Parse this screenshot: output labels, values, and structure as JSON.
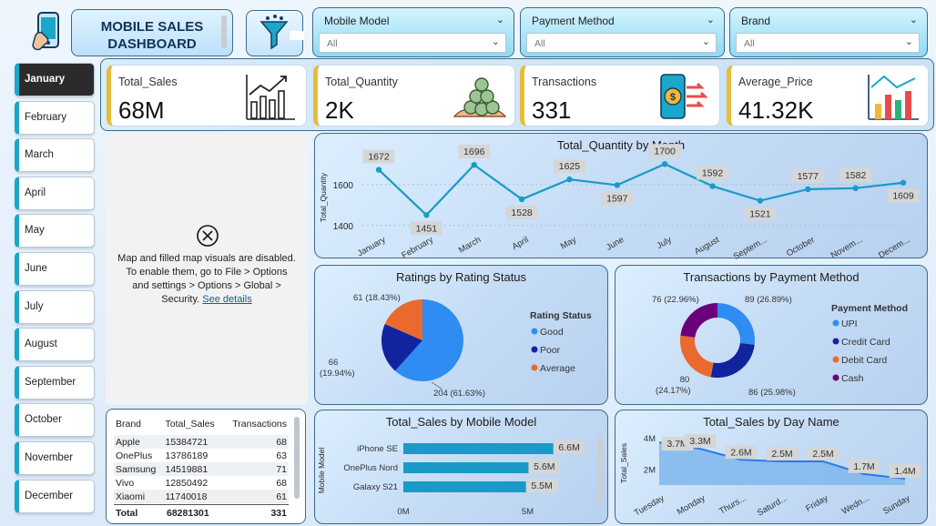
{
  "header": {
    "title_line1": "MOBILE SALES",
    "title_line2": "DASHBOARD",
    "colors": {
      "panel_border": "#3f6a8a",
      "accent": "#1aa7c9",
      "kpi_border": "#e6bd3a"
    }
  },
  "slicers": [
    {
      "label": "Mobile Model",
      "value": "All"
    },
    {
      "label": "Payment Method",
      "value": "All"
    },
    {
      "label": "Brand",
      "value": "All"
    }
  ],
  "months": [
    "January",
    "February",
    "March",
    "April",
    "May",
    "June",
    "July",
    "August",
    "September",
    "October",
    "November",
    "December"
  ],
  "active_month": "January",
  "kpis": [
    {
      "title": "Total_Sales",
      "value": "68M",
      "icon": "bar-chart-growth-icon"
    },
    {
      "title": "Total_Quantity",
      "value": "2K",
      "icon": "coin-stack-icon"
    },
    {
      "title": "Transactions",
      "value": "331",
      "icon": "mobile-payment-icon"
    },
    {
      "title": "Average_Price",
      "value": "41.32K",
      "icon": "price-chart-icon"
    }
  ],
  "map": {
    "message": "Map and filled map visuals are disabled. To enable them, go to File > Options and settings > Options > Global > Security.",
    "link": "See details"
  },
  "table": {
    "headers": [
      "Brand",
      "Total_Sales",
      "Transactions"
    ],
    "rows": [
      [
        "Apple",
        "15384721",
        "68"
      ],
      [
        "OnePlus",
        "13786189",
        "63"
      ],
      [
        "Samsung",
        "14519881",
        "71"
      ],
      [
        "Vivo",
        "12850492",
        "68"
      ],
      [
        "Xiaomi",
        "11740018",
        "61"
      ]
    ],
    "total": [
      "Total",
      "68281301",
      "331"
    ]
  },
  "chart_data": [
    {
      "type": "line",
      "title": "Total_Quantity by Month",
      "xlabel": "",
      "ylabel": "Total_Quantity",
      "categories": [
        "January",
        "February",
        "March",
        "April",
        "May",
        "June",
        "July",
        "August",
        "Septem...",
        "October",
        "Novem...",
        "Decem..."
      ],
      "values": [
        1672,
        1451,
        1696,
        1528,
        1625,
        1597,
        1700,
        1592,
        1521,
        1577,
        1582,
        1609
      ],
      "yticks": [
        "1600",
        "1400"
      ],
      "ylim": [
        1350,
        1750
      ]
    },
    {
      "type": "pie",
      "title": "Ratings by Rating Status",
      "legend_title": "Rating Status",
      "labels": [
        "Good",
        "Poor",
        "Average"
      ],
      "values": [
        204,
        66,
        61
      ],
      "data_labels": [
        "204 (61.63%)",
        "66 (19.94%)",
        "61 (18.43%)"
      ],
      "colors": [
        "#2f8cf2",
        "#12239e",
        "#ea6a2e"
      ]
    },
    {
      "type": "pie",
      "title": "Transactions by Payment Method",
      "legend_title": "Payment Method",
      "labels": [
        "UPI",
        "Credit Card",
        "Debit Card",
        "Cash"
      ],
      "values": [
        89,
        86,
        80,
        76
      ],
      "data_labels": [
        "89 (26.89%)",
        "86 (25.98%)",
        "80 (24.17%)",
        "76 (22.96%)"
      ],
      "colors": [
        "#2f8cf2",
        "#12239e",
        "#ea6a2e",
        "#6b007b"
      ]
    },
    {
      "type": "bar",
      "title": "Total_Sales by Mobile Model",
      "ylabel": "Mobile Model",
      "categories": [
        "iPhone SE",
        "OnePlus Nord",
        "Galaxy S21"
      ],
      "values": [
        6.6,
        5.6,
        5.5
      ],
      "data_labels": [
        "6.6M",
        "5.6M",
        "5.5M"
      ],
      "xticks": [
        "0M",
        "5M"
      ],
      "xlim": [
        0,
        7
      ]
    },
    {
      "type": "area",
      "title": "Total_Sales by Day Name",
      "ylabel": "Total_Sales",
      "categories": [
        "Tuesday",
        "Monday",
        "Thurs...",
        "Saturd...",
        "Friday",
        "Wedn...",
        "Sunday"
      ],
      "values": [
        3.7,
        3.3,
        2.6,
        2.5,
        2.5,
        1.7,
        1.4
      ],
      "data_labels": [
        "3.7M",
        "3.3M",
        "2.6M",
        "2.5M",
        "2.5M",
        "1.7M",
        "1.4M"
      ],
      "yticks": [
        "4M",
        "2M"
      ],
      "ylim": [
        1,
        4
      ]
    }
  ]
}
